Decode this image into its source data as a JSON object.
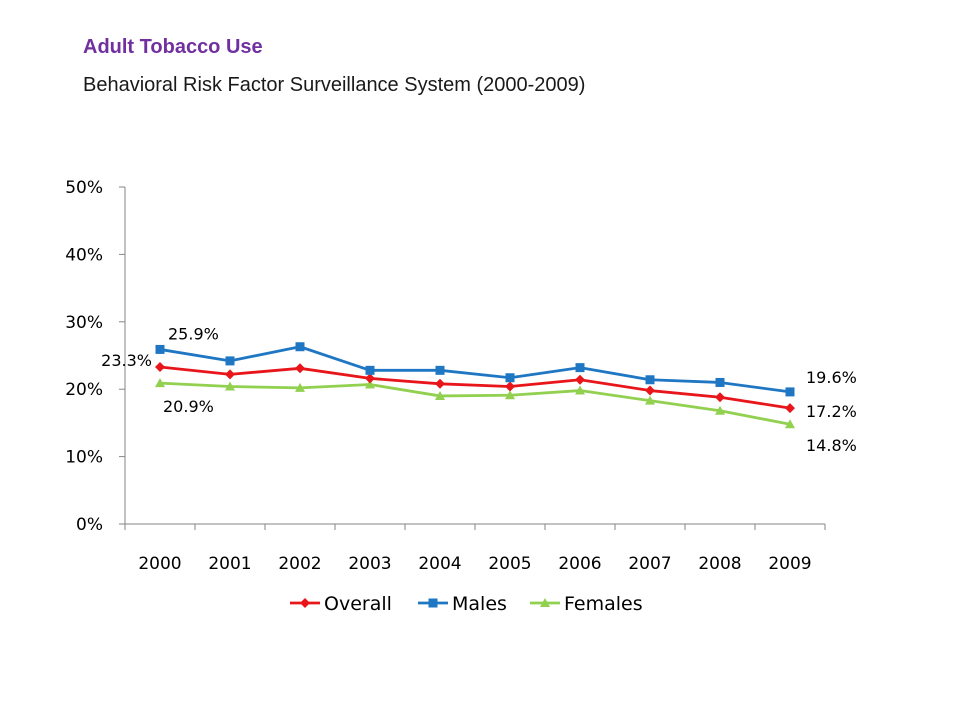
{
  "header": {
    "title": "Adult Tobacco Use",
    "subtitle": "Behavioral Risk Factor Surveillance System (2000-2009)"
  },
  "chart_data": {
    "type": "line",
    "categories": [
      "2000",
      "2001",
      "2002",
      "2003",
      "2004",
      "2005",
      "2006",
      "2007",
      "2008",
      "2009"
    ],
    "ylim": [
      0,
      50
    ],
    "yticks": [
      "0%",
      "10%",
      "20%",
      "30%",
      "40%",
      "50%"
    ],
    "ytick_values": [
      0,
      10,
      20,
      30,
      40,
      50
    ],
    "grid": false,
    "legend_position": "bottom",
    "series": [
      {
        "name": "Overall",
        "color": "#e8161b",
        "marker": "diamond",
        "values": [
          23.3,
          22.2,
          23.1,
          21.6,
          20.8,
          20.4,
          21.4,
          19.8,
          18.8,
          17.2
        ]
      },
      {
        "name": "Males",
        "color": "#1f77c4",
        "marker": "square",
        "values": [
          25.9,
          24.2,
          26.3,
          22.8,
          22.8,
          21.7,
          23.2,
          21.4,
          21.0,
          19.6
        ]
      },
      {
        "name": "Females",
        "color": "#92d050",
        "marker": "triangle",
        "values": [
          20.9,
          20.4,
          20.2,
          20.7,
          19.0,
          19.1,
          19.8,
          18.3,
          16.8,
          14.8
        ]
      }
    ],
    "annotations": [
      {
        "text": "25.9%",
        "series": "Males",
        "x": "2000"
      },
      {
        "text": "23.3%",
        "series": "Overall",
        "x": "2000"
      },
      {
        "text": "20.9%",
        "series": "Females",
        "x": "2000"
      },
      {
        "text": "19.6%",
        "series": "Males",
        "x": "2009"
      },
      {
        "text": "17.2%",
        "series": "Overall",
        "x": "2009"
      },
      {
        "text": "14.8%",
        "series": "Females",
        "x": "2009"
      }
    ]
  }
}
